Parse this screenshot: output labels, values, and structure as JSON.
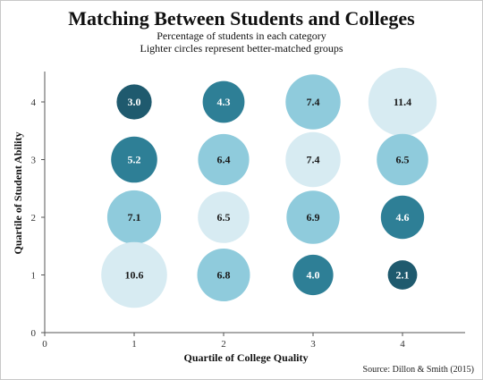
{
  "chart_data": {
    "type": "scatter",
    "title": "Matching Between Students and Colleges",
    "subtitle_lines": [
      "Percentage of students in each category",
      "Lighter circles represent better-matched groups"
    ],
    "xlabel": "Quartile of College Quality",
    "ylabel": "Quartile of Student Ability",
    "xlim": [
      0,
      4.7
    ],
    "ylim": [
      0,
      4.7
    ],
    "xticks": [
      "0",
      "1",
      "2",
      "3",
      "4"
    ],
    "yticks": [
      "0",
      "1",
      "2",
      "3",
      "4"
    ],
    "source": "Source: Dillon & Smith (2015)",
    "grid": false,
    "colors": {
      "dark": "#1f5a6e",
      "mid": "#2e7f96",
      "light": "#8fcbdc",
      "lightest": "#d7ebf2"
    },
    "points": [
      {
        "x": 1,
        "y": 4,
        "value": "3.0",
        "size": 3.0,
        "shade": "dark"
      },
      {
        "x": 2,
        "y": 4,
        "value": "4.3",
        "size": 4.3,
        "shade": "mid"
      },
      {
        "x": 3,
        "y": 4,
        "value": "7.4",
        "size": 7.4,
        "shade": "light"
      },
      {
        "x": 4,
        "y": 4,
        "value": "11.4",
        "size": 11.4,
        "shade": "lightest"
      },
      {
        "x": 1,
        "y": 3,
        "value": "5.2",
        "size": 5.2,
        "shade": "mid"
      },
      {
        "x": 2,
        "y": 3,
        "value": "6.4",
        "size": 6.4,
        "shade": "light"
      },
      {
        "x": 3,
        "y": 3,
        "value": "7.4",
        "size": 7.4,
        "shade": "lightest"
      },
      {
        "x": 4,
        "y": 3,
        "value": "6.5",
        "size": 6.5,
        "shade": "light"
      },
      {
        "x": 1,
        "y": 2,
        "value": "7.1",
        "size": 7.1,
        "shade": "light"
      },
      {
        "x": 2,
        "y": 2,
        "value": "6.5",
        "size": 6.5,
        "shade": "lightest"
      },
      {
        "x": 3,
        "y": 2,
        "value": "6.9",
        "size": 6.9,
        "shade": "light"
      },
      {
        "x": 4,
        "y": 2,
        "value": "4.6",
        "size": 4.6,
        "shade": "mid"
      },
      {
        "x": 1,
        "y": 1,
        "value": "10.6",
        "size": 10.6,
        "shade": "lightest"
      },
      {
        "x": 2,
        "y": 1,
        "value": "6.8",
        "size": 6.8,
        "shade": "light"
      },
      {
        "x": 3,
        "y": 1,
        "value": "4.0",
        "size": 4.0,
        "shade": "mid"
      },
      {
        "x": 4,
        "y": 1,
        "value": "2.1",
        "size": 2.1,
        "shade": "dark"
      }
    ]
  }
}
